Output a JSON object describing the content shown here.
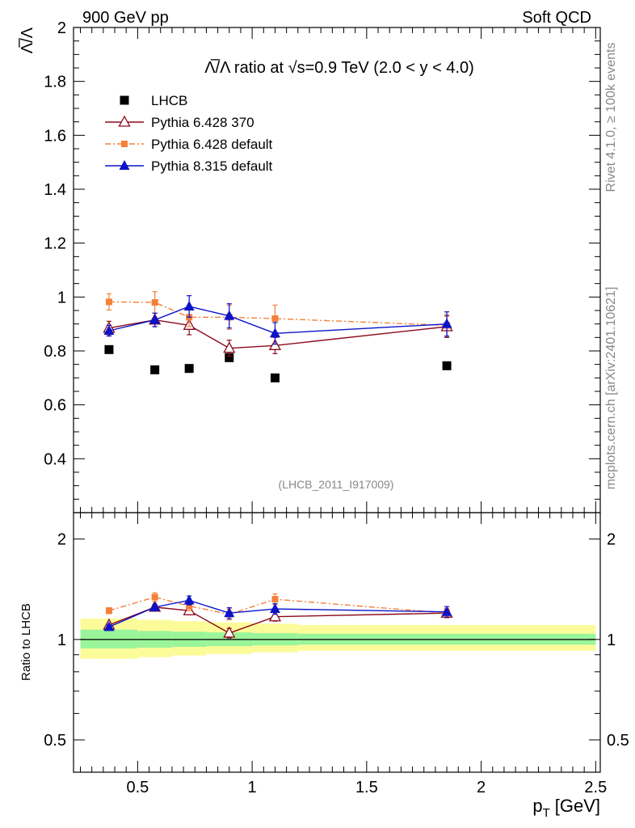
{
  "header": {
    "left": "900 GeV pp",
    "right": "Soft QCD"
  },
  "side_text": {
    "rivet": "Rivet 4.1.0, ≥ 100k events",
    "mcplots": "mcplots.cern.ch [arXiv:2401.10621]"
  },
  "colors": {
    "lhcb": "#000000",
    "py6_370": "#8b0a1a",
    "py6_default": "#f4803a",
    "py8": "#0b12c8",
    "band_inner": "#9af59a",
    "band_outer": "#fbfb9a"
  },
  "chart_data": [
    {
      "type": "scatter",
      "panel": "main",
      "title": "Λ̅/Λ ratio at √s=0.9 TeV (2.0 < y < 4.0)",
      "ylabel": "Λ̅/Λ",
      "analysis_label": "(LHCB_2011_I917009)",
      "xlim": [
        0.22,
        2.52
      ],
      "ylim": [
        0.2,
        2.0
      ],
      "yticks": [
        "0.4",
        "0.6",
        "0.8",
        "1",
        "1.2",
        "1.4",
        "1.6",
        "1.8",
        "2"
      ],
      "legend_position": "top-left",
      "series": [
        {
          "name": "LHCB",
          "key": "lhcb",
          "marker": "square",
          "x": [
            0.375,
            0.575,
            0.725,
            0.9,
            1.1,
            1.85
          ],
          "y": [
            0.805,
            0.73,
            0.735,
            0.775,
            0.7,
            0.745
          ],
          "err": [
            0.0,
            0.0,
            0.0,
            0.0,
            0.0,
            0.0
          ]
        },
        {
          "name": "Pythia 6.428 370",
          "key": "py6_370",
          "marker": "open-triangle",
          "line": "solid",
          "x": [
            0.375,
            0.575,
            0.725,
            0.9,
            1.1,
            1.85
          ],
          "y": [
            0.885,
            0.915,
            0.895,
            0.81,
            0.82,
            0.89
          ],
          "err": [
            0.025,
            0.025,
            0.035,
            0.03,
            0.03,
            0.04
          ]
        },
        {
          "name": "Pythia 6.428 default",
          "key": "py6_default",
          "marker": "filled-square",
          "line": "dashdot",
          "x": [
            0.375,
            0.575,
            0.725,
            0.9,
            1.1,
            1.85
          ],
          "y": [
            0.982,
            0.98,
            0.925,
            0.925,
            0.92,
            0.895
          ],
          "err": [
            0.03,
            0.04,
            0.035,
            0.045,
            0.05,
            0.04
          ]
        },
        {
          "name": "Pythia 8.315 default",
          "key": "py8",
          "marker": "filled-triangle",
          "line": "solid",
          "x": [
            0.375,
            0.575,
            0.725,
            0.9,
            1.1,
            1.85
          ],
          "y": [
            0.875,
            0.915,
            0.965,
            0.93,
            0.865,
            0.9
          ],
          "err": [
            0.02,
            0.025,
            0.04,
            0.045,
            0.04,
            0.045
          ]
        }
      ]
    },
    {
      "type": "scatter",
      "panel": "ratio",
      "ylabel": "Ratio to LHCB",
      "xlabel": "p_T [GeV]",
      "xlabel_main": "p",
      "xlabel_sub": "T",
      "xlabel_unit": "[GeV]",
      "xlim": [
        0.22,
        2.52
      ],
      "ylim": [
        0.4,
        2.4
      ],
      "yscale": "log",
      "yticks": [
        "0.5",
        "1",
        "2"
      ],
      "xticks": [
        "0.5",
        "1",
        "1.5",
        "2",
        "2.5"
      ],
      "bands": {
        "edges": [
          0.25,
          0.5,
          0.65,
          0.8,
          1.0,
          1.2,
          2.5
        ],
        "inner_lo": [
          0.94,
          0.945,
          0.95,
          0.955,
          0.96,
          0.965
        ],
        "inner_hi": [
          1.07,
          1.06,
          1.055,
          1.05,
          1.045,
          1.04
        ],
        "outer_lo": [
          0.875,
          0.885,
          0.895,
          0.905,
          0.915,
          0.925
        ],
        "outer_hi": [
          1.155,
          1.145,
          1.135,
          1.125,
          1.115,
          1.105
        ]
      },
      "series": [
        {
          "name": "Pythia 6.428 370",
          "key": "py6_370",
          "marker": "open-triangle",
          "line": "solid",
          "x": [
            0.375,
            0.575,
            0.725,
            0.9,
            1.1,
            1.85
          ],
          "y": [
            1.105,
            1.25,
            1.22,
            1.045,
            1.17,
            1.2
          ],
          "err": [
            0.015,
            0.02,
            0.035,
            0.035,
            0.035,
            0.035
          ]
        },
        {
          "name": "Pythia 6.428 default",
          "key": "py6_default",
          "marker": "filled-square",
          "line": "dashdot",
          "x": [
            0.375,
            0.575,
            0.725,
            0.9,
            1.1,
            1.85
          ],
          "y": [
            1.22,
            1.34,
            1.26,
            1.19,
            1.32,
            1.2
          ],
          "err": [
            0.025,
            0.04,
            0.04,
            0.045,
            0.05,
            0.04
          ]
        },
        {
          "name": "Pythia 8.315 default",
          "key": "py8",
          "marker": "filled-triangle",
          "line": "solid",
          "x": [
            0.375,
            0.575,
            0.725,
            0.9,
            1.1,
            1.85
          ],
          "y": [
            1.09,
            1.25,
            1.31,
            1.2,
            1.235,
            1.21
          ],
          "err": [
            0.015,
            0.025,
            0.04,
            0.045,
            0.045,
            0.045
          ]
        }
      ]
    }
  ]
}
